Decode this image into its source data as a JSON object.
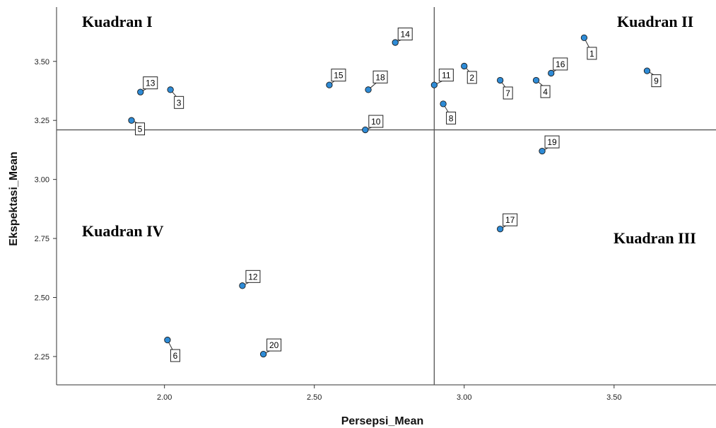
{
  "chart_data": {
    "type": "scatter",
    "xlabel": "Persepsi_Mean",
    "ylabel": "Ekspektasi_Mean",
    "xlim": [
      1.64,
      3.84
    ],
    "ylim": [
      2.13,
      3.73
    ],
    "x_ticks": [
      "2.00",
      "2.50",
      "3.00",
      "3.50"
    ],
    "y_ticks": [
      "2.25",
      "2.50",
      "2.75",
      "3.00",
      "3.25",
      "3.50"
    ],
    "x_tick_values": [
      2.0,
      2.5,
      3.0,
      3.5
    ],
    "y_tick_values": [
      2.25,
      2.5,
      2.75,
      3.0,
      3.25,
      3.5
    ],
    "grid": false,
    "reference_lines": {
      "x": 2.9,
      "y": 3.21
    },
    "quadrant_labels": [
      "Kuadran I",
      "Kuadran II",
      "Kuadran III",
      "Kuadran IV"
    ],
    "marker_color": "#2e8bd6",
    "points": [
      {
        "label": "1",
        "x": 3.4,
        "y": 3.6
      },
      {
        "label": "2",
        "x": 3.0,
        "y": 3.48
      },
      {
        "label": "3",
        "x": 2.02,
        "y": 3.38
      },
      {
        "label": "4",
        "x": 3.24,
        "y": 3.42
      },
      {
        "label": "5",
        "x": 1.89,
        "y": 3.25
      },
      {
        "label": "6",
        "x": 2.01,
        "y": 2.32
      },
      {
        "label": "7",
        "x": 3.12,
        "y": 3.42
      },
      {
        "label": "8",
        "x": 2.93,
        "y": 3.32
      },
      {
        "label": "9",
        "x": 3.61,
        "y": 3.46
      },
      {
        "label": "10",
        "x": 2.67,
        "y": 3.21
      },
      {
        "label": "11",
        "x": 2.9,
        "y": 3.4
      },
      {
        "label": "12",
        "x": 2.26,
        "y": 2.55
      },
      {
        "label": "13",
        "x": 1.92,
        "y": 3.37
      },
      {
        "label": "14",
        "x": 2.77,
        "y": 3.58
      },
      {
        "label": "15",
        "x": 2.55,
        "y": 3.4
      },
      {
        "label": "16",
        "x": 3.29,
        "y": 3.45
      },
      {
        "label": "17",
        "x": 3.12,
        "y": 2.79
      },
      {
        "label": "18",
        "x": 2.68,
        "y": 3.38
      },
      {
        "label": "19",
        "x": 3.26,
        "y": 3.12
      },
      {
        "label": "20",
        "x": 2.33,
        "y": 2.26
      }
    ]
  }
}
